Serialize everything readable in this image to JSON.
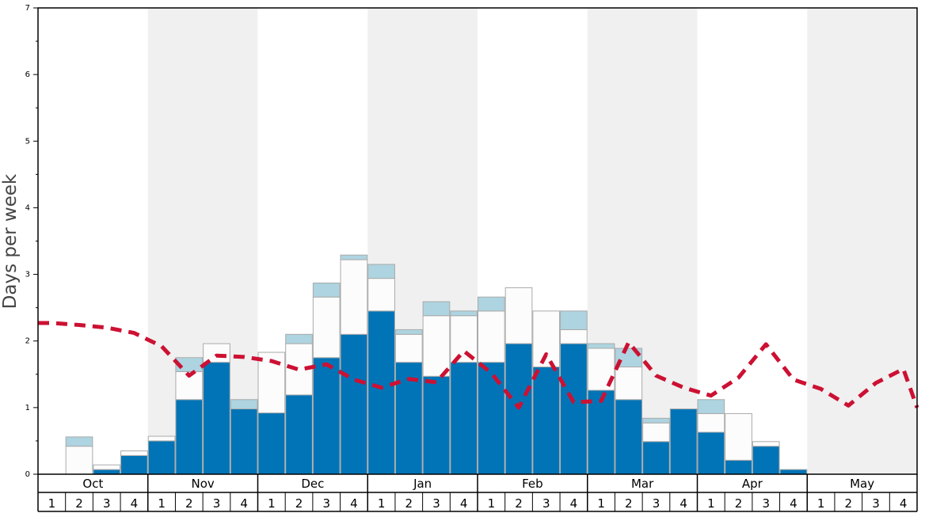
{
  "chart_data": {
    "type": "bar",
    "ylabel": "Days per week",
    "xlabel": "",
    "title": "",
    "ylim": [
      0,
      7
    ],
    "yticks": [
      "0",
      "1",
      "2",
      "3",
      "4",
      "5",
      "6",
      "7"
    ],
    "months": [
      "Oct",
      "Nov",
      "Dec",
      "Jan",
      "Feb",
      "Mar",
      "Apr",
      "May"
    ],
    "weeks_per_month": [
      "1",
      "2",
      "3",
      "4"
    ],
    "shaded_months": [
      "Nov",
      "Jan",
      "Mar",
      "May"
    ],
    "colors": {
      "dark_bar": "#0174b7",
      "white_bar": "#fcfcfc",
      "light_bar": "#add4e0",
      "line": "#cc1133",
      "shade": "#f0f0f0",
      "bar_border": "#aaaaaa"
    },
    "series": [
      {
        "values": [
          0,
          0,
          0.07,
          0.28,
          0.5,
          1.12,
          1.68,
          0.98,
          0.92,
          1.19,
          1.75,
          2.1,
          2.45,
          1.68,
          1.47,
          1.68,
          1.68,
          1.96,
          1.61,
          1.96,
          1.26,
          1.12,
          0.49,
          0.98,
          0.63,
          0.21,
          0.42,
          0.07,
          0,
          0,
          0,
          0
        ]
      },
      {
        "values": [
          0,
          0.42,
          0.07,
          0.07,
          0.07,
          0.42,
          0.28,
          0,
          0.91,
          0.77,
          0.91,
          1.12,
          0.49,
          0.42,
          0.91,
          0.7,
          0.77,
          0.84,
          0.84,
          0.21,
          0.63,
          0.49,
          0.28,
          0,
          0.28,
          0.7,
          0.07,
          0,
          0,
          0,
          0,
          0
        ]
      },
      {
        "values": [
          0,
          0.14,
          0,
          0,
          0,
          0.21,
          0,
          0.14,
          0,
          0.14,
          0.21,
          0.07,
          0.21,
          0.07,
          0.21,
          0.07,
          0.21,
          0,
          0,
          0.28,
          0.07,
          0.28,
          0.07,
          0,
          0.21,
          0,
          0,
          0,
          0,
          0,
          0,
          0
        ]
      },
      {
        "values": [
          2.27,
          2.24,
          2.2,
          2.12,
          1.92,
          1.48,
          1.78,
          1.76,
          1.7,
          1.57,
          1.65,
          1.42,
          1.3,
          1.43,
          1.38,
          1.85,
          1.52,
          1.0,
          1.8,
          1.08,
          1.1,
          1.98,
          1.48,
          1.3,
          1.18,
          1.45,
          1.95,
          1.42,
          1.28,
          1.03,
          1.37,
          1.58
        ]
      }
    ],
    "line_end_value": 1.0
  }
}
